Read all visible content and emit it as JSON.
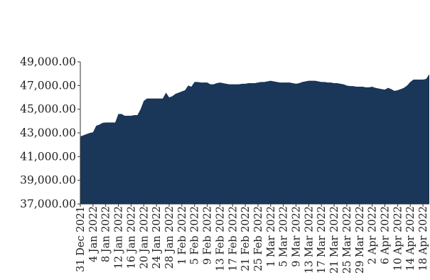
{
  "chart_data": {
    "type": "area",
    "title": "",
    "xlabel": "",
    "ylabel": "",
    "ylim": [
      37000,
      49000
    ],
    "yticks": [
      "49,000.00",
      "47,000.00",
      "45,000.00",
      "43,000.00",
      "41,000.00",
      "39,000.00",
      "37,000.00"
    ],
    "ytick_values": [
      49000,
      47000,
      45000,
      43000,
      41000,
      39000,
      37000
    ],
    "xticks": [
      "31 Dec 2021",
      "4 Jan 2022",
      "8 Jan 2022",
      "12 Jan 2022",
      "16 Jan 2022",
      "20 Jan 2022",
      "24 Jan 2022",
      "28 Jan 2022",
      "1 Feb 2022",
      "5 Feb 2022",
      "9 Feb 2022",
      "13 Feb 2022",
      "17 Feb 2022",
      "21 Feb 2022",
      "25 Feb 2022",
      "1 Mar 2022",
      "5 Mar 2022",
      "9 Mar 2022",
      "13 Mar 2022",
      "17 Mar 2022",
      "21 Mar 2022",
      "25 Mar 2022",
      "29 Mar 2022",
      "2 Apr 2022",
      "6 Apr 2022",
      "10 Apr 2022",
      "14 Apr 2022",
      "18 Apr 2022"
    ],
    "x": [
      "2021-12-31",
      "2022-01-01",
      "2022-01-02",
      "2022-01-03",
      "2022-01-04",
      "2022-01-05",
      "2022-01-06",
      "2022-01-07",
      "2022-01-08",
      "2022-01-09",
      "2022-01-10",
      "2022-01-11",
      "2022-01-12",
      "2022-01-13",
      "2022-01-14",
      "2022-01-15",
      "2022-01-16",
      "2022-01-17",
      "2022-01-18",
      "2022-01-19",
      "2022-01-20",
      "2022-01-21",
      "2022-01-22",
      "2022-01-23",
      "2022-01-24",
      "2022-01-25",
      "2022-01-26",
      "2022-01-27",
      "2022-01-28",
      "2022-01-29",
      "2022-01-30",
      "2022-01-31",
      "2022-02-01",
      "2022-02-02",
      "2022-02-03",
      "2022-02-04",
      "2022-02-05",
      "2022-02-06",
      "2022-02-07",
      "2022-02-08",
      "2022-02-09",
      "2022-02-10",
      "2022-02-11",
      "2022-02-12",
      "2022-02-13",
      "2022-02-14",
      "2022-02-15",
      "2022-02-16",
      "2022-02-17",
      "2022-02-18",
      "2022-02-19",
      "2022-02-20",
      "2022-02-21",
      "2022-02-22",
      "2022-02-23",
      "2022-02-24",
      "2022-02-25",
      "2022-02-26",
      "2022-02-27",
      "2022-02-28",
      "2022-03-01",
      "2022-03-02",
      "2022-03-03",
      "2022-03-04",
      "2022-03-05",
      "2022-03-06",
      "2022-03-07",
      "2022-03-08",
      "2022-03-09",
      "2022-03-10",
      "2022-03-11",
      "2022-03-12",
      "2022-03-13",
      "2022-03-14",
      "2022-03-15",
      "2022-03-16",
      "2022-03-17",
      "2022-03-18",
      "2022-03-19",
      "2022-03-20",
      "2022-03-21",
      "2022-03-22",
      "2022-03-23",
      "2022-03-24",
      "2022-03-25",
      "2022-03-26",
      "2022-03-27",
      "2022-03-28",
      "2022-03-29",
      "2022-03-30",
      "2022-03-31",
      "2022-04-01",
      "2022-04-02",
      "2022-04-03",
      "2022-04-04",
      "2022-04-05",
      "2022-04-06",
      "2022-04-07",
      "2022-04-08",
      "2022-04-09",
      "2022-04-10",
      "2022-04-11",
      "2022-04-12",
      "2022-04-13",
      "2022-04-14",
      "2022-04-15",
      "2022-04-16",
      "2022-04-17",
      "2022-04-18",
      "2022-04-19",
      "2022-04-20"
    ],
    "values": [
      42700,
      42800,
      42900,
      43000,
      43050,
      43600,
      43700,
      43850,
      43880,
      43880,
      43880,
      43880,
      44600,
      44600,
      44450,
      44450,
      44450,
      44500,
      44500,
      45000,
      45700,
      45900,
      45900,
      45900,
      45900,
      45900,
      45900,
      46400,
      46000,
      46100,
      46300,
      46400,
      46500,
      46600,
      47000,
      46900,
      47300,
      47300,
      47250,
      47250,
      47250,
      47100,
      47100,
      47200,
      47250,
      47200,
      47150,
      47100,
      47100,
      47100,
      47100,
      47150,
      47150,
      47200,
      47200,
      47200,
      47250,
      47300,
      47300,
      47350,
      47400,
      47350,
      47300,
      47250,
      47250,
      47250,
      47250,
      47200,
      47150,
      47200,
      47300,
      47350,
      47400,
      47400,
      47400,
      47350,
      47300,
      47300,
      47250,
      47250,
      47200,
      47200,
      47150,
      47100,
      47000,
      46950,
      46950,
      46900,
      46900,
      46900,
      46850,
      46850,
      46900,
      46800,
      46750,
      46700,
      46650,
      46800,
      46700,
      46550,
      46600,
      46700,
      46800,
      47000,
      47300,
      47500,
      47500,
      47500,
      47500,
      47550,
      47950
    ],
    "colors": {
      "fill": "#1a3658",
      "axis": "#333333",
      "text": "#222222"
    },
    "grid": false,
    "legend": "none"
  }
}
